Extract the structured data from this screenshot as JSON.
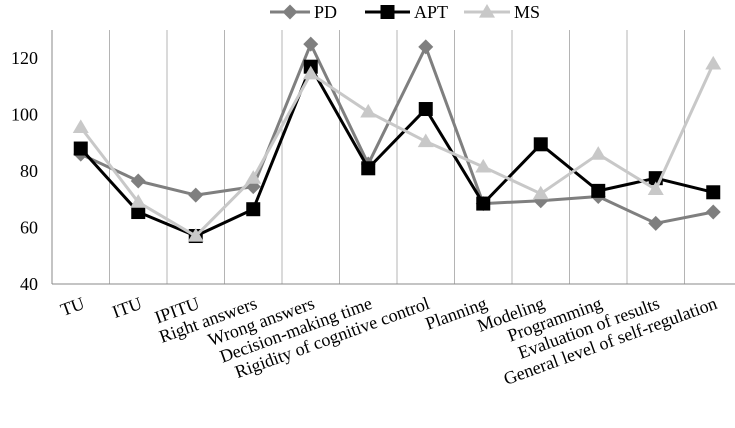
{
  "chart_data": {
    "type": "line",
    "title": "",
    "xlabel": "",
    "ylabel": "",
    "ylim": [
      40,
      130
    ],
    "yticks": [
      40,
      60,
      80,
      100,
      120
    ],
    "grid": "vertical",
    "legend_position": "top",
    "categories": [
      "TU",
      "ITU",
      "IPITU",
      "Right answers",
      "Wrong answers",
      "Decision-making time",
      "Rigidity of cognitive control",
      "Planning",
      "Modeling",
      "Programming",
      "Evaluation of results",
      "General level of self-regulation"
    ],
    "series": [
      {
        "name": "PD",
        "marker": "diamond",
        "color": "#7f7f7f",
        "values": [
          86,
          76.5,
          71.5,
          74.5,
          125,
          82.5,
          124,
          68.5,
          69.5,
          71,
          61.5,
          65.5
        ]
      },
      {
        "name": "APT",
        "marker": "square",
        "color": "#000000",
        "values": [
          88,
          65.5,
          57,
          66.5,
          117,
          81,
          102,
          68.5,
          89.5,
          73,
          77.5,
          72.5
        ]
      },
      {
        "name": "MS",
        "marker": "triangle",
        "color": "#c8c8c8",
        "values": [
          95.5,
          69,
          57,
          77.5,
          114.5,
          101,
          90.5,
          81.5,
          72,
          86,
          73.5,
          118
        ]
      }
    ]
  }
}
